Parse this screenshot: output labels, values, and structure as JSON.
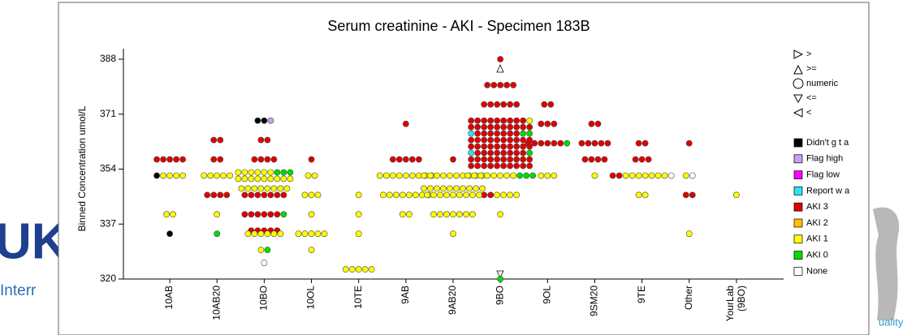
{
  "background": {
    "logo": "UK",
    "text": "Interr",
    "right_text": "uality"
  },
  "chart_data": {
    "type": "dotplot",
    "title": "Serum creatinine - AKI - Specimen 183B",
    "y_label": "Binned Concentration umol/L",
    "categories": [
      "10AB",
      "10AB20",
      "10BO",
      "10OL",
      "10TE",
      "9AB",
      "9AB20",
      "9BO",
      "9OL",
      "9SM20",
      "9TE",
      "Other",
      "YourLab (9BO)"
    ],
    "ylim": [
      320,
      388
    ],
    "yticks": [
      320,
      337,
      354,
      371,
      388
    ],
    "shape_legend": [
      ">",
      ">=",
      "numeric",
      "<=",
      "<"
    ],
    "series": [
      {
        "name": "Didn't g t a",
        "color": "#000000",
        "x": [
          "10AB",
          "10AB",
          "10BO",
          "10BO"
        ],
        "values": [
          352,
          334,
          369,
          369
        ]
      },
      {
        "name": "Flag high",
        "color": "#c9a0ee",
        "x": [
          "10BO"
        ],
        "values": [
          369
        ]
      },
      {
        "name": "Flag low",
        "color": "#ff00ff",
        "x": [],
        "values": []
      },
      {
        "name": "Report w a",
        "color": "#33e0f0",
        "x": [
          "9BO",
          "9BO"
        ],
        "values": [
          365,
          359
        ]
      },
      {
        "name": "AKI 3",
        "color": "#e00000",
        "x": [
          "10AB",
          "10AB",
          "10AB",
          "10AB",
          "10AB",
          "10AB20",
          "10AB20",
          "10AB20",
          "10AB20",
          "10AB20",
          "10AB20",
          "10AB20",
          "10AB20",
          "10BO",
          "10BO",
          "10BO",
          "10BO",
          "10BO",
          "10BO",
          "10BO",
          "10BO",
          "10BO",
          "10BO",
          "10BO",
          "10BO",
          "10BO",
          "10BO",
          "10BO",
          "10BO",
          "10BO",
          "10BO",
          "10BO",
          "10BO",
          "10BO",
          "10BO",
          "10BO",
          "10BO",
          "10OL",
          "9AB",
          "9AB",
          "9AB",
          "9AB",
          "9AB",
          "9AB",
          "9AB20",
          "9BO",
          "9BO",
          "9BO",
          "9BO",
          "9BO",
          "9BO",
          "9BO",
          "9BO",
          "9BO",
          "9BO",
          "9BO",
          "9BO",
          "9BO",
          "9BO",
          "9BO",
          "9BO",
          "9BO",
          "9BO",
          "9BO",
          "9BO",
          "9BO",
          "9BO",
          "9BO",
          "9BO",
          "9BO",
          "9BO",
          "9BO",
          "9BO",
          "9BO",
          "9BO",
          "9BO",
          "9BO",
          "9BO",
          "9BO",
          "9BO",
          "9BO",
          "9BO",
          "9BO",
          "9BO",
          "9BO",
          "9BO",
          "9BO",
          "9BO",
          "9BO",
          "9BO",
          "9BO",
          "9BO",
          "9BO",
          "9BO",
          "9BO",
          "9BO",
          "9BO",
          "9BO",
          "9BO",
          "9BO",
          "9BO",
          "9BO",
          "9BO",
          "9BO",
          "9BO",
          "9BO",
          "9BO",
          "9BO",
          "9BO",
          "9BO",
          "9BO",
          "9BO",
          "9BO",
          "9BO",
          "9BO",
          "9BO",
          "9BO",
          "9BO",
          "9BO",
          "9BO",
          "9BO",
          "9BO",
          "9BO",
          "9BO",
          "9BO",
          "9BO",
          "9BO",
          "9BO",
          "9BO",
          "9BO",
          "9BO",
          "9BO",
          "9BO",
          "9OL",
          "9OL",
          "9OL",
          "9OL",
          "9OL",
          "9OL",
          "9OL",
          "9OL",
          "9OL",
          "9OL",
          "9OL",
          "9SM20",
          "9SM20",
          "9SM20",
          "9SM20",
          "9SM20",
          "9SM20",
          "9SM20",
          "9SM20",
          "9SM20",
          "9SM20",
          "9SM20",
          "9TE",
          "9TE",
          "9TE",
          "9TE",
          "9TE",
          "9TE",
          "9TE",
          "Other",
          "Other",
          "Other"
        ],
        "values": [
          357,
          357,
          357,
          357,
          357,
          363,
          363,
          357,
          357,
          346,
          346,
          346,
          346,
          363,
          363,
          357,
          357,
          357,
          357,
          346,
          346,
          346,
          346,
          346,
          346,
          346,
          340,
          340,
          340,
          340,
          340,
          340,
          335,
          335,
          335,
          335,
          335,
          357,
          368,
          357,
          357,
          357,
          357,
          357,
          357,
          388,
          380,
          380,
          380,
          380,
          380,
          374,
          374,
          374,
          374,
          374,
          374,
          369,
          369,
          369,
          369,
          369,
          369,
          369,
          369,
          369,
          367,
          367,
          367,
          367,
          367,
          367,
          367,
          367,
          367,
          367,
          365,
          365,
          365,
          365,
          365,
          365,
          365,
          363,
          363,
          363,
          363,
          363,
          363,
          363,
          363,
          363,
          363,
          361,
          361,
          361,
          361,
          361,
          361,
          361,
          361,
          361,
          361,
          359,
          359,
          359,
          359,
          359,
          359,
          359,
          359,
          357,
          357,
          357,
          357,
          357,
          357,
          357,
          357,
          357,
          357,
          355,
          355,
          355,
          355,
          355,
          355,
          355,
          355,
          355,
          355,
          346,
          346,
          374,
          374,
          368,
          368,
          368,
          362,
          362,
          362,
          362,
          362,
          362,
          368,
          368,
          362,
          362,
          362,
          362,
          362,
          357,
          357,
          357,
          357,
          362,
          362,
          357,
          357,
          357,
          352,
          352,
          362,
          346,
          346
        ]
      },
      {
        "name": "AKI 2",
        "color": "#ffc000",
        "x": [],
        "values": []
      },
      {
        "name": "AKI 1",
        "color": "#ffff00",
        "x": [
          "10AB",
          "10AB",
          "10AB",
          "10AB",
          "10AB",
          "10AB",
          "10AB20",
          "10AB20",
          "10AB20",
          "10AB20",
          "10AB20",
          "10AB20",
          "10BO",
          "10BO",
          "10BO",
          "10BO",
          "10BO",
          "10BO",
          "10BO",
          "10BO",
          "10BO",
          "10BO",
          "10BO",
          "10BO",
          "10BO",
          "10BO",
          "10BO",
          "10BO",
          "10BO",
          "10BO",
          "10BO",
          "10BO",
          "10BO",
          "10BO",
          "10BO",
          "10BO",
          "10BO",
          "10BO",
          "10BO",
          "10BO",
          "10BO",
          "10BO",
          "10OL",
          "10OL",
          "10OL",
          "10OL",
          "10OL",
          "10OL",
          "10OL",
          "10OL",
          "10OL",
          "10OL",
          "10OL",
          "10OL",
          "10TE",
          "10TE",
          "10TE",
          "10TE",
          "10TE",
          "10TE",
          "10TE",
          "10TE",
          "9AB",
          "9AB",
          "9AB",
          "9AB",
          "9AB",
          "9AB",
          "9AB",
          "9AB",
          "9AB",
          "9AB",
          "9AB",
          "9AB",
          "9AB",
          "9AB",
          "9AB",
          "9AB",
          "9AB",
          "9AB",
          "9AB",
          "9AB20",
          "9AB20",
          "9AB20",
          "9AB20",
          "9AB20",
          "9AB20",
          "9AB20",
          "9AB20",
          "9AB20",
          "9AB20",
          "9AB20",
          "9AB20",
          "9AB20",
          "9AB20",
          "9AB20",
          "9AB20",
          "9AB20",
          "9AB20",
          "9AB20",
          "9AB20",
          "9AB20",
          "9AB20",
          "9AB20",
          "9AB20",
          "9AB20",
          "9AB20",
          "9AB20",
          "9AB20",
          "9AB20",
          "9AB20",
          "9AB20",
          "9AB20",
          "9AB20",
          "9AB20",
          "9AB20",
          "9AB20",
          "9AB20",
          "9BO",
          "9BO",
          "9BO",
          "9BO",
          "9BO",
          "9BO",
          "9BO",
          "9BO",
          "9BO",
          "9BO",
          "9BO",
          "9BO",
          "9BO",
          "9BO",
          "9OL",
          "9OL",
          "9OL",
          "9SM20",
          "9TE",
          "9TE",
          "9TE",
          "9TE",
          "9TE",
          "9TE",
          "9TE",
          "9TE",
          "9TE",
          "Other",
          "Other",
          "YourLab (9BO)"
        ],
        "values": [
          352,
          352,
          352,
          352,
          340,
          340,
          352,
          352,
          352,
          352,
          352,
          340,
          353,
          353,
          353,
          353,
          353,
          353,
          351,
          351,
          351,
          351,
          351,
          351,
          351,
          351,
          351,
          348,
          348,
          348,
          348,
          348,
          348,
          348,
          348,
          334,
          334,
          334,
          334,
          334,
          334,
          329,
          352,
          352,
          346,
          346,
          346,
          340,
          334,
          334,
          334,
          334,
          334,
          329,
          346,
          340,
          334,
          323,
          323,
          323,
          323,
          323,
          352,
          352,
          352,
          352,
          352,
          352,
          352,
          352,
          352,
          346,
          346,
          346,
          346,
          346,
          346,
          346,
          346,
          340,
          340,
          352,
          352,
          352,
          352,
          352,
          352,
          352,
          352,
          352,
          352,
          348,
          348,
          348,
          348,
          348,
          348,
          348,
          348,
          348,
          348,
          346,
          346,
          346,
          346,
          346,
          346,
          346,
          346,
          346,
          340,
          340,
          340,
          340,
          340,
          340,
          340,
          334,
          369,
          352,
          352,
          352,
          352,
          352,
          352,
          352,
          352,
          346,
          346,
          346,
          346,
          340,
          352,
          352,
          352,
          352,
          352,
          352,
          352,
          352,
          352,
          352,
          352,
          346,
          346,
          352,
          334,
          346
        ]
      },
      {
        "name": "AKI 0",
        "color": "#00dd00",
        "x": [
          "10AB20",
          "10BO",
          "10BO",
          "10BO",
          "10BO",
          "10BO",
          "9BO",
          "9BO",
          "9BO",
          "9BO",
          "9BO",
          "9BO",
          "9BO",
          "9OL"
        ],
        "values": [
          334,
          353,
          353,
          353,
          340,
          329,
          365,
          365,
          359,
          352,
          352,
          352,
          320,
          362
        ]
      },
      {
        "name": "None",
        "color": "#ffffff",
        "x": [
          "10BO",
          "9TE",
          "Other"
        ],
        "values": [
          325,
          352,
          352
        ]
      }
    ]
  }
}
